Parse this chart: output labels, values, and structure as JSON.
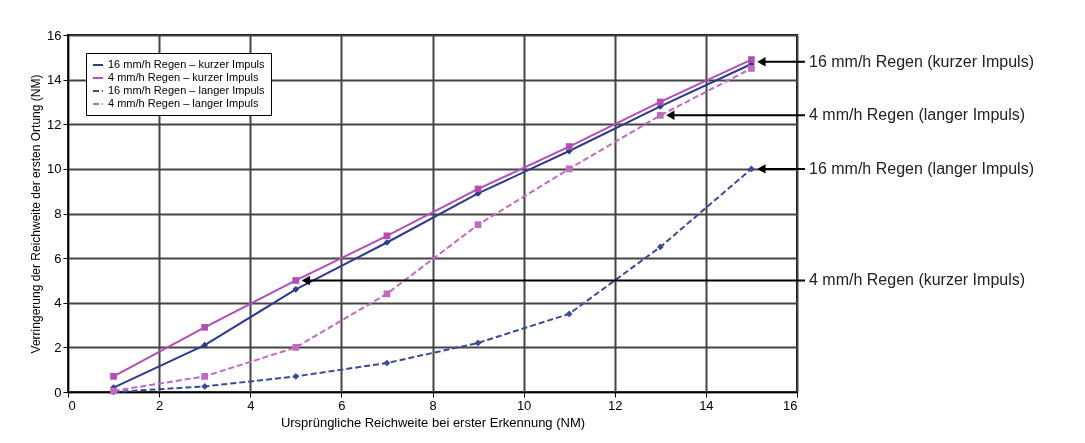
{
  "chart_data": {
    "type": "line",
    "xlabel": "Ursprüngliche Reichweite bei erster Erkennung (NM)",
    "ylabel": "Verringerung der Reichweite der ersten Ortung (NM)",
    "x": [
      1,
      3,
      5,
      7,
      9,
      11,
      13,
      15
    ],
    "series": [
      {
        "name": "16 mm/h Regen – kurzer Impuls",
        "color": "#2e3a8c",
        "marker": "diamond",
        "line_style": "solid",
        "values": [
          0.2,
          2.1,
          4.6,
          6.7,
          8.9,
          10.8,
          12.8,
          14.7
        ]
      },
      {
        "name": "4 mm/h Regen – kurzer Impuls",
        "color": "#b34fb3",
        "marker": "square",
        "line_style": "solid",
        "values": [
          0.7,
          2.9,
          5.0,
          7.0,
          9.1,
          11.0,
          13.0,
          14.9
        ]
      },
      {
        "name": "16 mm/h Regen – langer Impuls",
        "color": "#3a4a9c",
        "marker": "diamond",
        "line_style": "dashed",
        "values": [
          0.0,
          0.25,
          0.7,
          1.3,
          2.2,
          3.5,
          6.5,
          10.0
        ]
      },
      {
        "name": "4 mm/h Regen – langer Impuls",
        "color": "#c06ac0",
        "marker": "square",
        "line_style": "dashed",
        "values": [
          0.05,
          0.7,
          2.0,
          4.4,
          7.5,
          10.0,
          12.4,
          14.5
        ]
      }
    ],
    "xlim": [
      0,
      16
    ],
    "ylim": [
      0,
      16
    ],
    "xticks": [
      0,
      2,
      4,
      6,
      8,
      10,
      12,
      14,
      16
    ],
    "yticks": [
      0,
      2,
      4,
      6,
      8,
      10,
      12,
      14,
      16
    ],
    "grid": true,
    "legend": "top left",
    "annotations": [
      {
        "text": "4 mm/h Regen (kurzer Impuls)",
        "x": 5,
        "y": 5.0
      },
      {
        "text": "16 mm/h Regen (kurzer Impuls)",
        "x": 15,
        "y": 14.8
      },
      {
        "text": "4 mm/h Regen (langer Impuls)",
        "x": 13,
        "y": 12.4
      },
      {
        "text": "16 mm/h Regen (langer Impuls)",
        "x": 15,
        "y": 10.0
      }
    ]
  }
}
